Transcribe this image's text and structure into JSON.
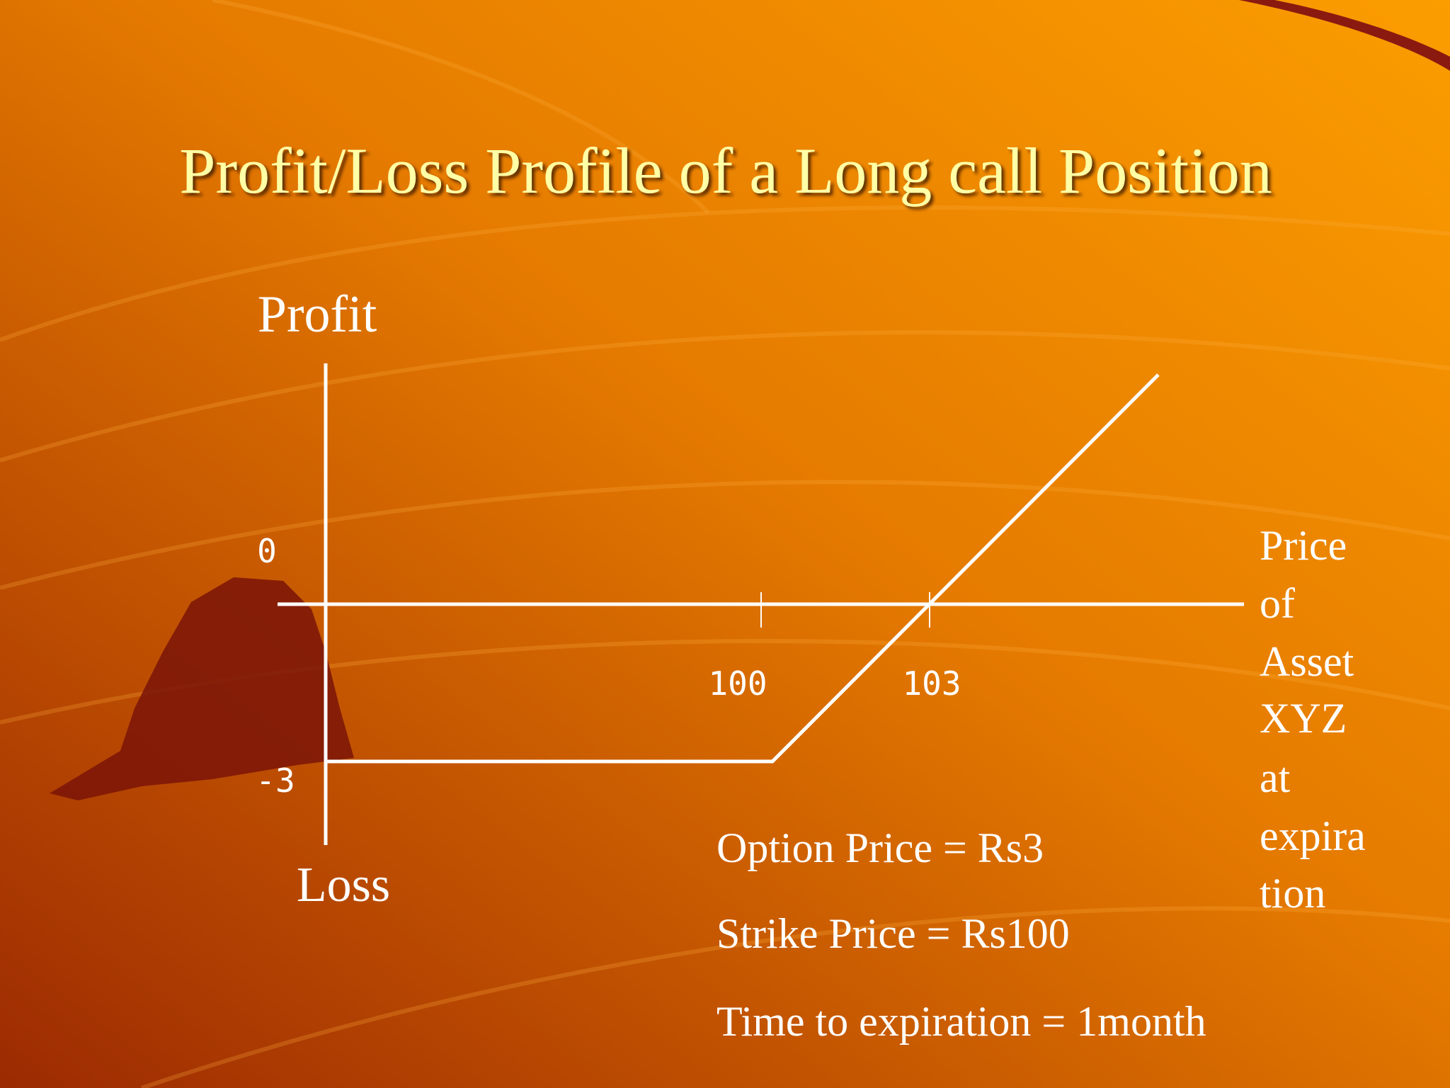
{
  "slide": {
    "title": "Profit/Loss Profile of a Long call Position",
    "y_axis_top": "Profit",
    "y_axis_bottom": "Loss",
    "y_tick_labels": [
      "0",
      "-3"
    ],
    "x_tick_labels": [
      "100",
      "103"
    ],
    "x_axis_label_lines": [
      "Price",
      "of",
      "Asset",
      "XYZ",
      "at",
      "expira",
      "tion"
    ],
    "notes": [
      "Option Price = Rs3",
      "Strike Price = Rs100",
      "Time to expiration = 1month"
    ]
  }
}
